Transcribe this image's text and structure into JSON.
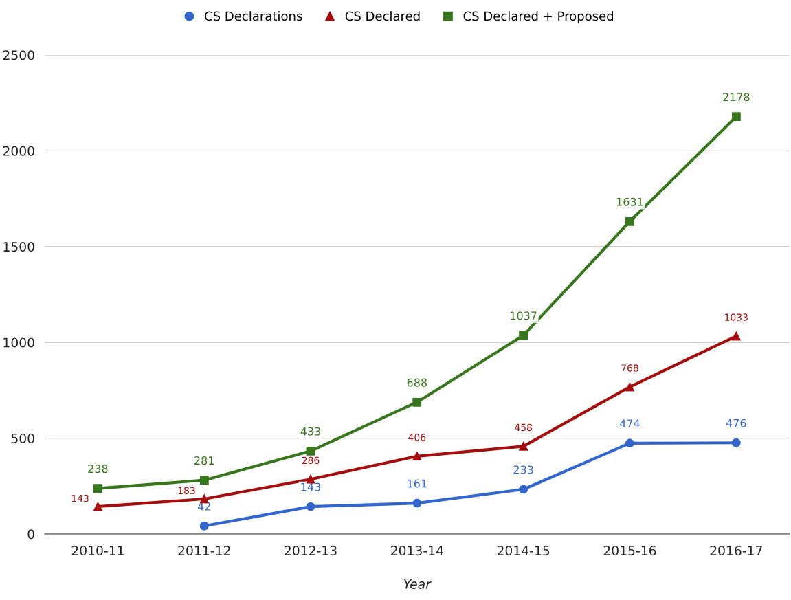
{
  "chart_data": {
    "type": "line",
    "xlabel": "Year",
    "categories": [
      "2010-11",
      "2011-12",
      "2012-13",
      "2013-14",
      "2014-15",
      "2015-16",
      "2016-17"
    ],
    "series": [
      {
        "name": "CS Declarations",
        "color": "#3366cc",
        "marker": "circle",
        "values": [
          null,
          42,
          143,
          161,
          233,
          474,
          476
        ]
      },
      {
        "name": "CS Declared",
        "color": "#a50e0e",
        "marker": "triangle",
        "values": [
          143,
          183,
          286,
          406,
          458,
          768,
          1033
        ]
      },
      {
        "name": "CS Declared + Proposed",
        "color": "#38761d",
        "marker": "square",
        "values": [
          238,
          281,
          433,
          688,
          1037,
          1631,
          2178
        ]
      }
    ],
    "ylim": [
      0,
      2500
    ],
    "yticks": [
      0,
      500,
      1000,
      1500,
      2000,
      2500
    ],
    "grid": "y",
    "legend": "top",
    "data_labels": true
  }
}
